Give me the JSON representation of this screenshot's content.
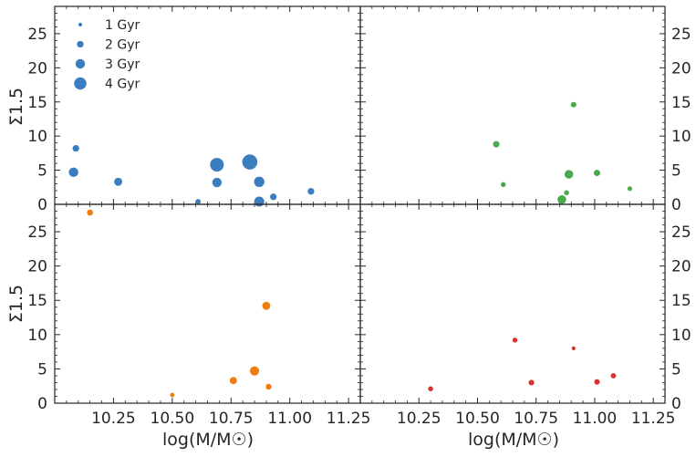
{
  "chart_data": {
    "type": "scatter",
    "layout": "2x2 grid, shared axes",
    "xlabel": "log(M/M☉)",
    "ylabel": "Σ1.5",
    "xlim": [
      10.0,
      11.3
    ],
    "ylim": [
      0,
      29
    ],
    "xticks": [
      "10.25",
      "10.50",
      "10.75",
      "11.00",
      "11.25"
    ],
    "yticks": [
      "0",
      "5",
      "10",
      "15",
      "20",
      "25"
    ],
    "size_legend": {
      "placement": "upper-left",
      "entries": [
        {
          "label": "1 Gyr",
          "age": 1
        },
        {
          "label": "2 Gyr",
          "age": 2
        },
        {
          "label": "3 Gyr",
          "age": 3
        },
        {
          "label": "4 Gyr",
          "age": 4
        }
      ]
    },
    "panels": [
      {
        "position": "top-left",
        "color": "#3a7ebf",
        "points": [
          {
            "x": 10.09,
            "y": 8.2,
            "age": 2
          },
          {
            "x": 10.08,
            "y": 4.7,
            "age": 3
          },
          {
            "x": 10.27,
            "y": 3.3,
            "age": 2.5
          },
          {
            "x": 10.61,
            "y": 0.4,
            "age": 1.5
          },
          {
            "x": 10.69,
            "y": 5.8,
            "age": 4.5
          },
          {
            "x": 10.69,
            "y": 3.2,
            "age": 3
          },
          {
            "x": 10.83,
            "y": 6.2,
            "age": 5
          },
          {
            "x": 10.87,
            "y": 3.3,
            "age": 3.3
          },
          {
            "x": 10.87,
            "y": 0.4,
            "age": 3.2
          },
          {
            "x": 10.93,
            "y": 1.1,
            "age": 2
          },
          {
            "x": 11.09,
            "y": 1.9,
            "age": 2
          }
        ]
      },
      {
        "position": "top-right",
        "color": "#4aa94a",
        "points": [
          {
            "x": 10.91,
            "y": 14.6,
            "age": 1.6
          },
          {
            "x": 10.58,
            "y": 8.8,
            "age": 1.9
          },
          {
            "x": 10.61,
            "y": 2.9,
            "age": 1.4
          },
          {
            "x": 10.89,
            "y": 4.4,
            "age": 2.7
          },
          {
            "x": 11.01,
            "y": 4.6,
            "age": 1.9
          },
          {
            "x": 10.88,
            "y": 1.7,
            "age": 1.4
          },
          {
            "x": 10.86,
            "y": 0.7,
            "age": 2.7
          },
          {
            "x": 11.15,
            "y": 2.3,
            "age": 1.3
          }
        ]
      },
      {
        "position": "bottom-left",
        "color": "#f07d11",
        "points": [
          {
            "x": 10.15,
            "y": 27.8,
            "age": 1.8
          },
          {
            "x": 10.9,
            "y": 14.2,
            "age": 2.5
          },
          {
            "x": 10.85,
            "y": 4.7,
            "age": 2.9
          },
          {
            "x": 10.76,
            "y": 3.3,
            "age": 2.2
          },
          {
            "x": 10.91,
            "y": 2.4,
            "age": 1.7
          },
          {
            "x": 10.5,
            "y": 1.2,
            "age": 1.2
          }
        ]
      },
      {
        "position": "bottom-right",
        "color": "#d6322f",
        "points": [
          {
            "x": 10.66,
            "y": 9.2,
            "age": 1.4
          },
          {
            "x": 10.91,
            "y": 8.0,
            "age": 1.0
          },
          {
            "x": 10.3,
            "y": 2.1,
            "age": 1.4
          },
          {
            "x": 10.73,
            "y": 3.0,
            "age": 1.6
          },
          {
            "x": 11.01,
            "y": 3.1,
            "age": 1.6
          },
          {
            "x": 11.08,
            "y": 4.0,
            "age": 1.5
          }
        ]
      }
    ]
  }
}
